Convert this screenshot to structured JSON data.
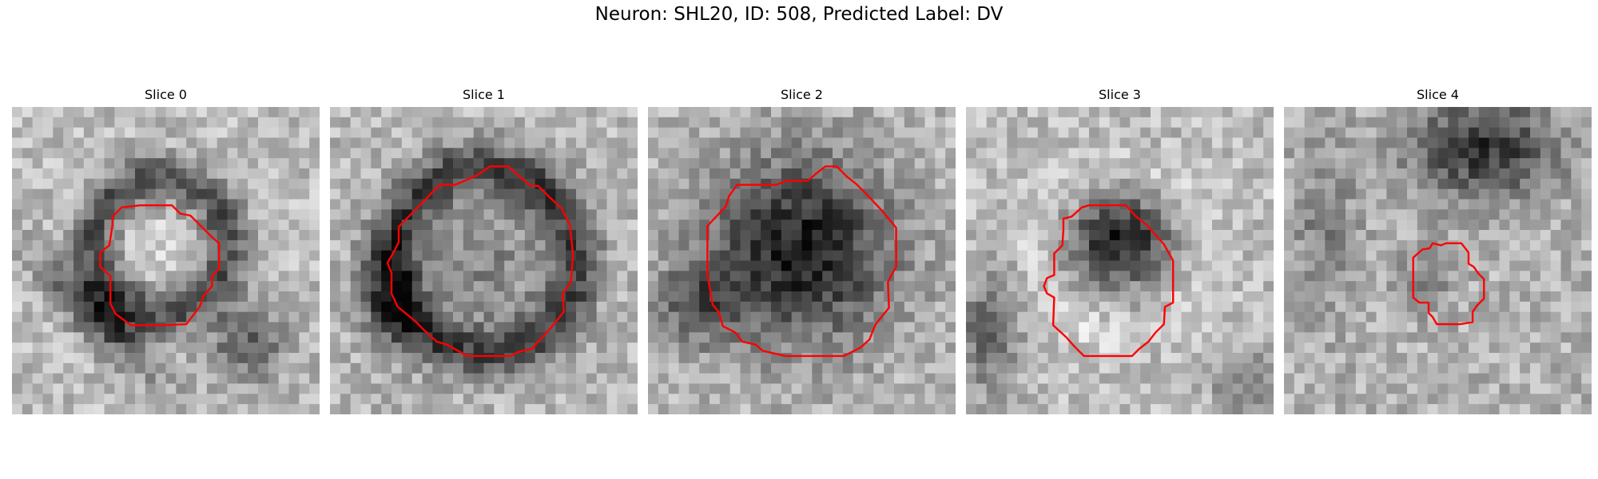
{
  "figure": {
    "title": "Neuron: SHL20, ID: 508, Predicted Label: DV",
    "contour_color": "#ff0000",
    "colormap": "gray",
    "panels": [
      {
        "title": "Slice 0",
        "contour_shape": "small-octagon-upper-center",
        "image_pattern": "pale-center-dark-ring-dark-lower-left-band"
      },
      {
        "title": "Slice 1",
        "contour_shape": "large-octagon",
        "image_pattern": "gray-center-dark-ring"
      },
      {
        "title": "Slice 2",
        "contour_shape": "large-octagon",
        "image_pattern": "dark-filled-blob"
      },
      {
        "title": "Slice 3",
        "contour_shape": "medium-octagon",
        "image_pattern": "dark-core-light-ring"
      },
      {
        "title": "Slice 4",
        "contour_shape": "small-octagon",
        "image_pattern": "light-noise-dark-upper-right"
      }
    ]
  }
}
